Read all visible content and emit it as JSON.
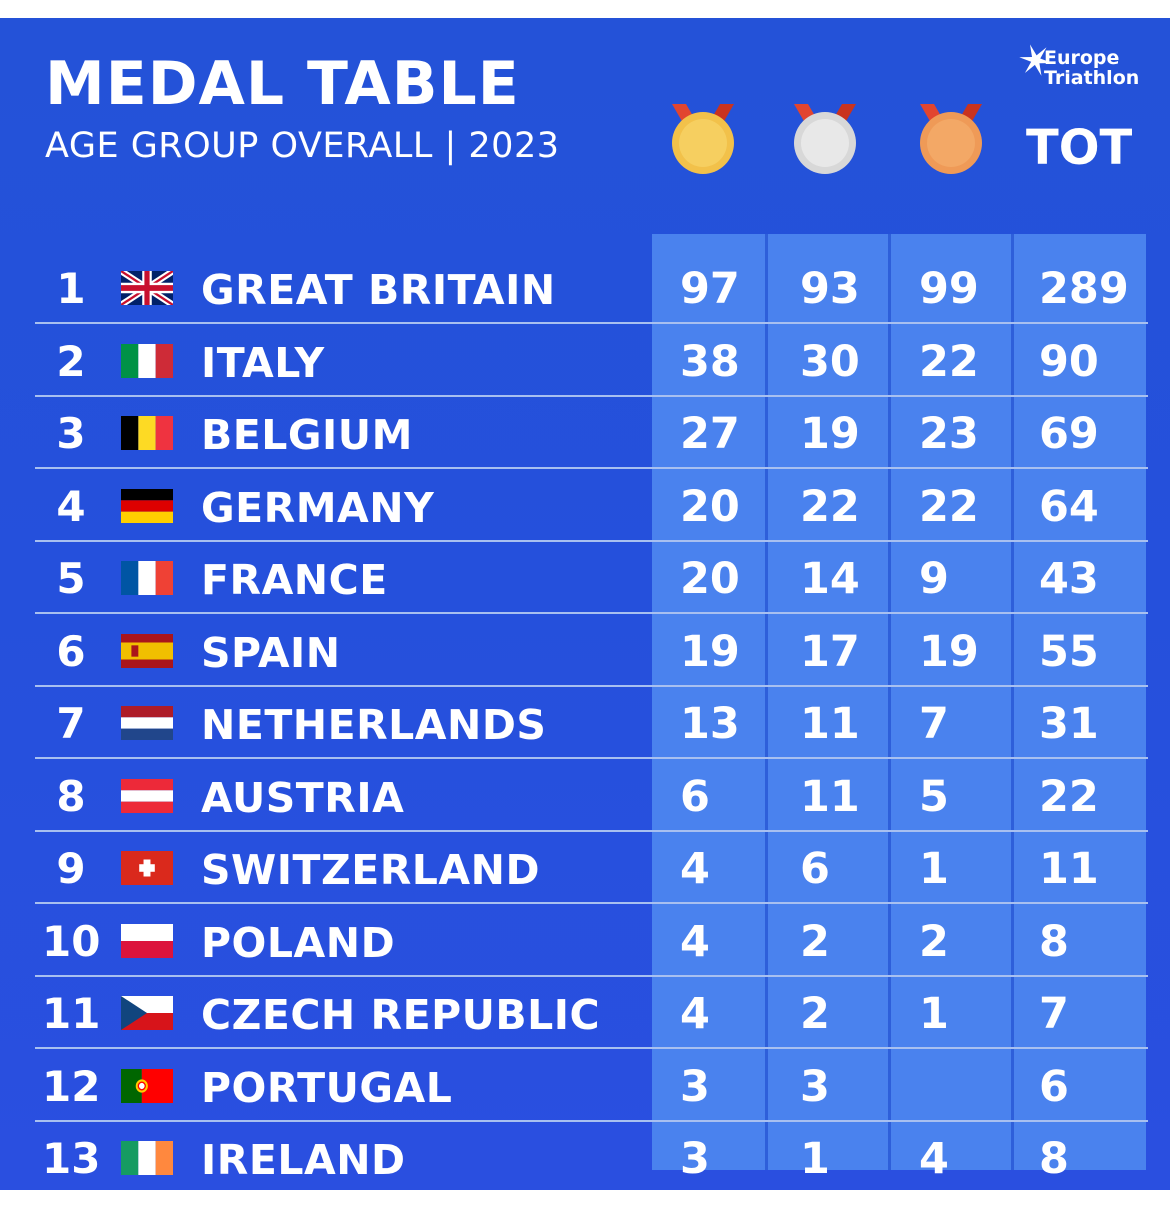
{
  "header": {
    "title": "MEDAL TABLE",
    "subtitle": "AGE GROUP OVERALL | 2023",
    "logo_line1": "Europe",
    "logo_line2": "Triathlon",
    "total_label": "TOT",
    "medal_icons": [
      "gold-medal-icon",
      "silver-medal-icon",
      "bronze-medal-icon"
    ]
  },
  "colors": {
    "background": "#2550dc",
    "panel": "#4a82ee",
    "gold": "#f2c14a",
    "silver": "#dcdcdc",
    "bronze": "#ef9a57",
    "ribbon": "#e2452f"
  },
  "rows": [
    {
      "rank": "1",
      "country": "GREAT BRITAIN",
      "flag": "uk",
      "gold": "97",
      "silver": "93",
      "bronze": "99",
      "total": "289"
    },
    {
      "rank": "2",
      "country": "ITALY",
      "flag": "italy",
      "gold": "38",
      "silver": "30",
      "bronze": "22",
      "total": "90"
    },
    {
      "rank": "3",
      "country": "BELGIUM",
      "flag": "belgium",
      "gold": "27",
      "silver": "19",
      "bronze": "23",
      "total": "69"
    },
    {
      "rank": "4",
      "country": "GERMANY",
      "flag": "germany",
      "gold": "20",
      "silver": "22",
      "bronze": "22",
      "total": "64"
    },
    {
      "rank": "5",
      "country": "FRANCE",
      "flag": "france",
      "gold": "20",
      "silver": "14",
      "bronze": "9",
      "total": "43"
    },
    {
      "rank": "6",
      "country": "SPAIN",
      "flag": "spain",
      "gold": "19",
      "silver": "17",
      "bronze": "19",
      "total": "55"
    },
    {
      "rank": "7",
      "country": "NETHERLANDS",
      "flag": "netherlands",
      "gold": "13",
      "silver": "11",
      "bronze": "7",
      "total": "31"
    },
    {
      "rank": "8",
      "country": "AUSTRIA",
      "flag": "austria",
      "gold": "6",
      "silver": "11",
      "bronze": "5",
      "total": "22"
    },
    {
      "rank": "9",
      "country": "SWITZERLAND",
      "flag": "switzerland",
      "gold": "4",
      "silver": "6",
      "bronze": "1",
      "total": "11"
    },
    {
      "rank": "10",
      "country": "POLAND",
      "flag": "poland",
      "gold": "4",
      "silver": "2",
      "bronze": "2",
      "total": "8"
    },
    {
      "rank": "11",
      "country": "CZECH REPUBLIC",
      "flag": "czech",
      "gold": "4",
      "silver": "2",
      "bronze": "1",
      "total": "7"
    },
    {
      "rank": "12",
      "country": "PORTUGAL",
      "flag": "portugal",
      "gold": "3",
      "silver": "3",
      "bronze": "",
      "total": "6"
    },
    {
      "rank": "13",
      "country": "IRELAND",
      "flag": "ireland",
      "gold": "3",
      "silver": "1",
      "bronze": "4",
      "total": "8"
    }
  ]
}
